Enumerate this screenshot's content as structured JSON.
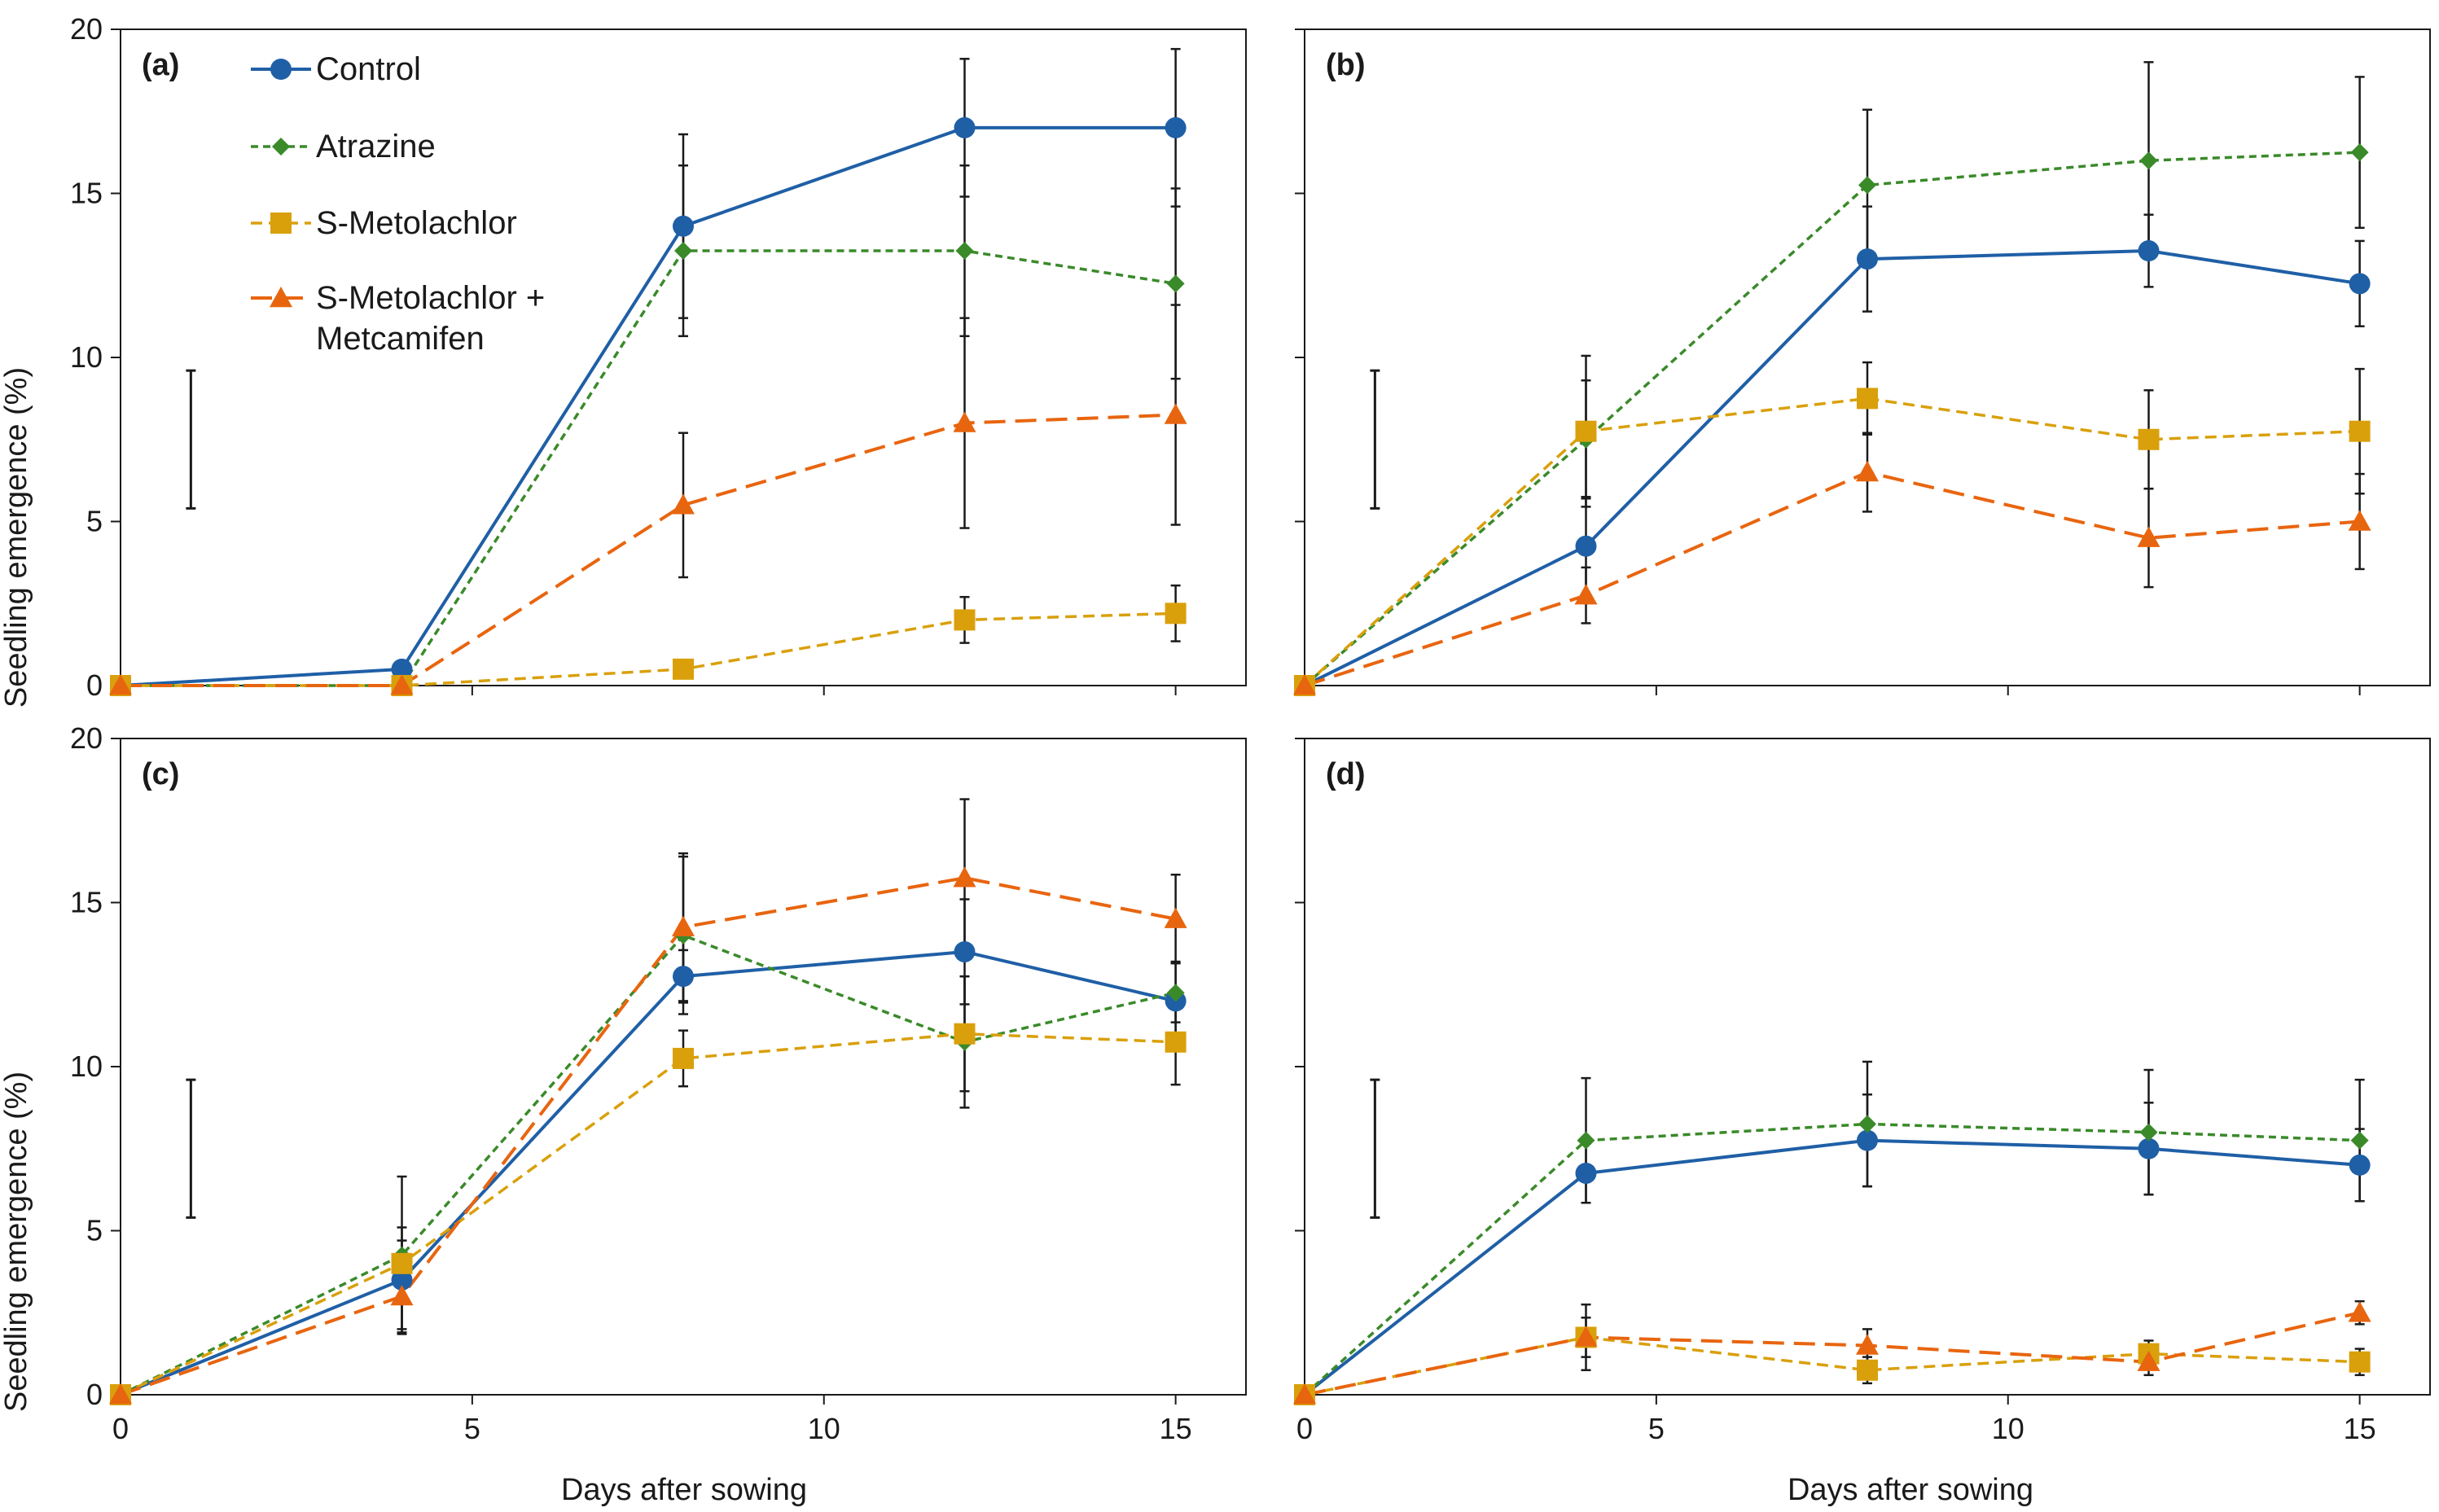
{
  "chart_data": {
    "type": "line",
    "layout": "2x2 panels",
    "shared": {
      "xlabel": "Days after sowing",
      "ylabel": "Seedling emergence (%)",
      "xlim": [
        0,
        16
      ],
      "ylim": [
        0,
        20
      ],
      "xticks": [
        0,
        5,
        10,
        15
      ],
      "yticks": [
        0,
        5,
        10,
        15,
        20
      ],
      "x": [
        0,
        4,
        8,
        12,
        15
      ]
    },
    "series_styles": [
      {
        "name": "Control",
        "color": "#1f5fa6",
        "marker": "circle",
        "dash": "solid"
      },
      {
        "name": "Atrazine",
        "color": "#3a8a2a",
        "marker": "diamond",
        "dash": "short-dash"
      },
      {
        "name": "S-Metolachlor",
        "color": "#d9a00c",
        "marker": "square",
        "dash": "dash"
      },
      {
        "name": "S-Metolachlor + Metcamifen",
        "color": "#e8650f",
        "marker": "triangle",
        "dash": "long-dash"
      }
    ],
    "legend": {
      "placement": "top-left of panel (a)",
      "entries": [
        "Control",
        "Atrazine",
        "S-Metolachlor",
        "S-Metolachlor + Metcamifen"
      ]
    },
    "panels": [
      {
        "label": "(a)",
        "lsd_bar": {
          "x": 1,
          "low": 5.4,
          "high": 9.6
        },
        "series": [
          {
            "name": "Control",
            "values": [
              0,
              0.5,
              14.0,
              17.0,
              17.0
            ],
            "errors": [
              0,
              0,
              2.8,
              2.1,
              2.4
            ]
          },
          {
            "name": "Atrazine",
            "values": [
              0,
              0,
              13.25,
              13.25,
              12.25
            ],
            "errors": [
              0,
              0,
              2.6,
              2.6,
              2.9
            ]
          },
          {
            "name": "S-Metolachlor",
            "values": [
              0,
              0,
              0.5,
              2.0,
              2.2
            ],
            "errors": [
              0,
              0,
              0,
              0.7,
              0.85
            ]
          },
          {
            "name": "S-Metolachlor + Metcamifen",
            "values": [
              0,
              0,
              5.5,
              8.0,
              8.25
            ],
            "errors": [
              0,
              0,
              2.2,
              3.2,
              3.35
            ]
          }
        ]
      },
      {
        "label": "(b)",
        "lsd_bar": {
          "x": 1,
          "low": 5.4,
          "high": 9.6
        },
        "series": [
          {
            "name": "Control",
            "values": [
              0,
              4.25,
              13.0,
              13.25,
              12.25
            ],
            "errors": [
              0,
              1.5,
              1.6,
              1.1,
              1.3
            ]
          },
          {
            "name": "Atrazine",
            "values": [
              0,
              7.5,
              15.25,
              16.0,
              16.25
            ],
            "errors": [
              0,
              1.8,
              2.3,
              3.0,
              2.3
            ]
          },
          {
            "name": "S-Metolachlor",
            "values": [
              0,
              7.75,
              8.75,
              7.5,
              7.75
            ],
            "errors": [
              0,
              2.3,
              1.1,
              1.5,
              1.9
            ]
          },
          {
            "name": "S-Metolachlor + Metcamifen",
            "values": [
              0,
              2.75,
              6.5,
              4.5,
              5.0
            ],
            "errors": [
              0,
              0.85,
              1.2,
              1.5,
              1.45
            ]
          }
        ]
      },
      {
        "label": "(c)",
        "lsd_bar": {
          "x": 1,
          "low": 5.4,
          "high": 9.6
        },
        "series": [
          {
            "name": "Control",
            "values": [
              0,
              3.5,
              12.75,
              13.5,
              12.0
            ],
            "errors": [
              0,
              1.6,
              0.8,
              1.6,
              1.2
            ]
          },
          {
            "name": "Atrazine",
            "values": [
              0,
              4.25,
              14.0,
              10.75,
              12.25
            ],
            "errors": [
              0,
              2.4,
              2.4,
              2.0,
              0.9
            ]
          },
          {
            "name": "S-Metolachlor",
            "values": [
              0,
              4.0,
              10.25,
              11.0,
              10.75
            ],
            "errors": [
              0,
              0.7,
              0.85,
              1.75,
              1.3
            ]
          },
          {
            "name": "S-Metolachlor + Metcamifen",
            "values": [
              0,
              3.0,
              14.25,
              15.75,
              14.5
            ],
            "errors": [
              0,
              1.0,
              2.25,
              2.4,
              1.35
            ]
          }
        ]
      },
      {
        "label": "(d)",
        "lsd_bar": {
          "x": 1,
          "low": 5.4,
          "high": 9.6
        },
        "series": [
          {
            "name": "Control",
            "values": [
              0,
              6.75,
              7.75,
              7.5,
              7.0
            ],
            "errors": [
              0,
              0.9,
              1.4,
              1.4,
              1.1
            ]
          },
          {
            "name": "Atrazine",
            "values": [
              0,
              7.75,
              8.25,
              8.0,
              7.75
            ],
            "errors": [
              0,
              1.9,
              1.9,
              1.9,
              1.85
            ]
          },
          {
            "name": "S-Metolachlor",
            "values": [
              0,
              1.75,
              0.75,
              1.25,
              1.0
            ],
            "errors": [
              0,
              1.0,
              0.4,
              0.4,
              0.4
            ]
          },
          {
            "name": "S-Metolachlor + Metcamifen",
            "values": [
              0,
              1.75,
              1.5,
              1.0,
              2.5
            ],
            "errors": [
              0,
              0.6,
              0.5,
              0.4,
              0.35
            ]
          }
        ]
      }
    ]
  }
}
